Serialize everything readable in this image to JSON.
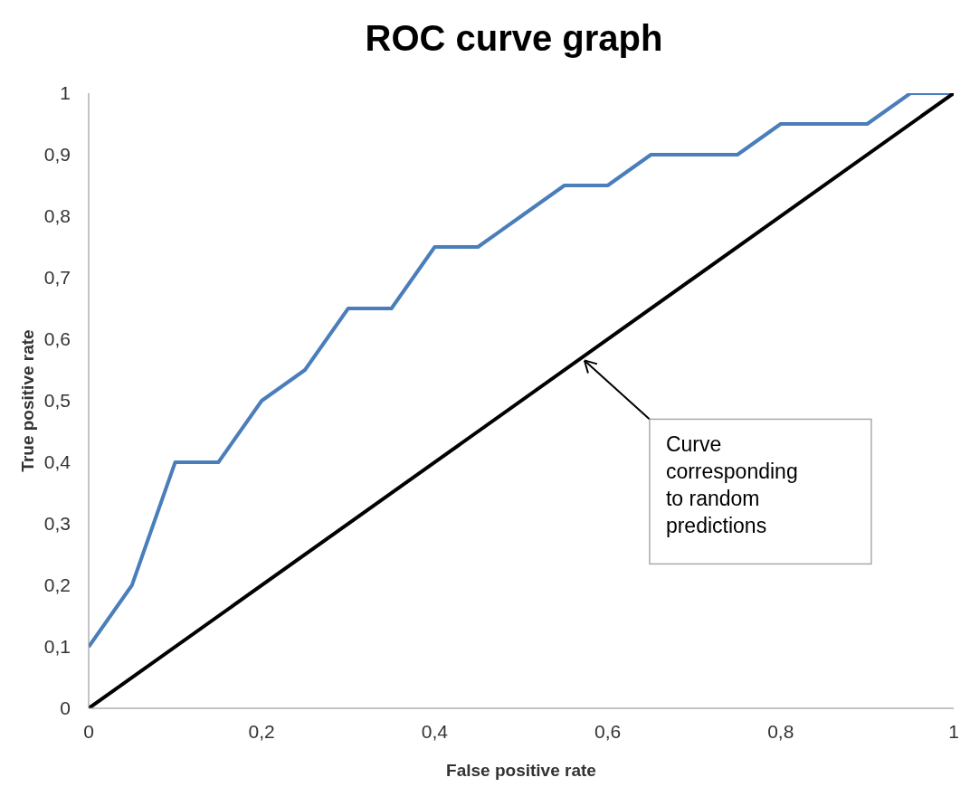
{
  "chart_data": {
    "type": "line",
    "title": "ROC curve graph",
    "xlabel": "False positive rate",
    "ylabel": "True positive rate",
    "series": [
      {
        "color": "#4a7ebb",
        "x": [
          0,
          0.05,
          0.1,
          0.15,
          0.2,
          0.25,
          0.3,
          0.35,
          0.4,
          0.45,
          0.5,
          0.55,
          0.6,
          0.65,
          0.7,
          0.75,
          0.8,
          0.85,
          0.9,
          0.95,
          1
        ],
        "values": [
          0.1,
          0.2,
          0.4,
          0.4,
          0.5,
          0.55,
          0.65,
          0.65,
          0.75,
          0.75,
          0.8,
          0.85,
          0.85,
          0.9,
          0.9,
          0.9,
          0.95,
          0.95,
          0.95,
          1,
          1
        ]
      },
      {
        "color": "#000000",
        "x": [
          0,
          1
        ],
        "values": [
          0,
          1
        ]
      }
    ],
    "xlim": [
      0,
      1
    ],
    "ylim": [
      0,
      1
    ],
    "xticks": [
      0,
      {
        "value": 0.2,
        "label": "0,2"
      },
      {
        "value": 0.4,
        "label": "0,4"
      },
      {
        "value": 0.6,
        "label": "0,6"
      },
      {
        "value": 0.8,
        "label": "0,8"
      },
      1
    ],
    "yticks": [
      0,
      {
        "value": 0.1,
        "label": "0,1"
      },
      {
        "value": 0.2,
        "label": "0,2"
      },
      {
        "value": 0.3,
        "label": "0,3"
      },
      {
        "value": 0.4,
        "label": "0,4"
      },
      {
        "value": 0.5,
        "label": "0,5"
      },
      {
        "value": 0.6,
        "label": "0,6"
      },
      {
        "value": 0.7,
        "label": "0,7"
      },
      {
        "value": 0.8,
        "label": "0,8"
      },
      {
        "value": 0.9,
        "label": "0,9"
      },
      1
    ],
    "annotations": [
      {
        "text": "Curve corresponding to random predictions",
        "x": 0.57,
        "y": 0.57
      }
    ],
    "grid": false,
    "legend": false,
    "marker": "none",
    "line_style": "solid"
  }
}
